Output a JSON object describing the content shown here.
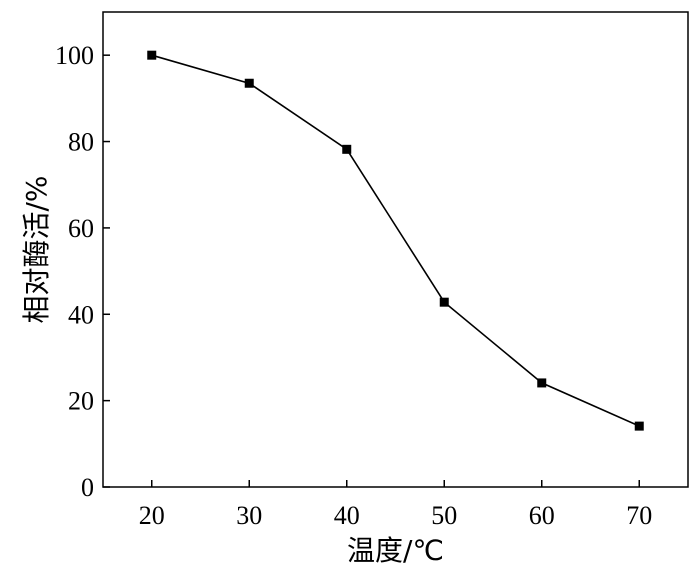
{
  "chart_data": {
    "type": "line",
    "title": "",
    "xlabel": "温度/℃",
    "ylabel": "相对酶活/%",
    "x": [
      20,
      30,
      40,
      50,
      60,
      70
    ],
    "y": [
      100,
      93.5,
      78.2,
      42.8,
      24.1,
      14.1
    ],
    "xlim": [
      15,
      75
    ],
    "ylim": [
      0,
      110
    ],
    "xticks": [
      20,
      30,
      40,
      50,
      60,
      70
    ],
    "yticks": [
      0,
      20,
      40,
      60,
      80,
      100
    ],
    "grid": false,
    "legend": "none",
    "line_color": "#000000",
    "marker": "square"
  }
}
